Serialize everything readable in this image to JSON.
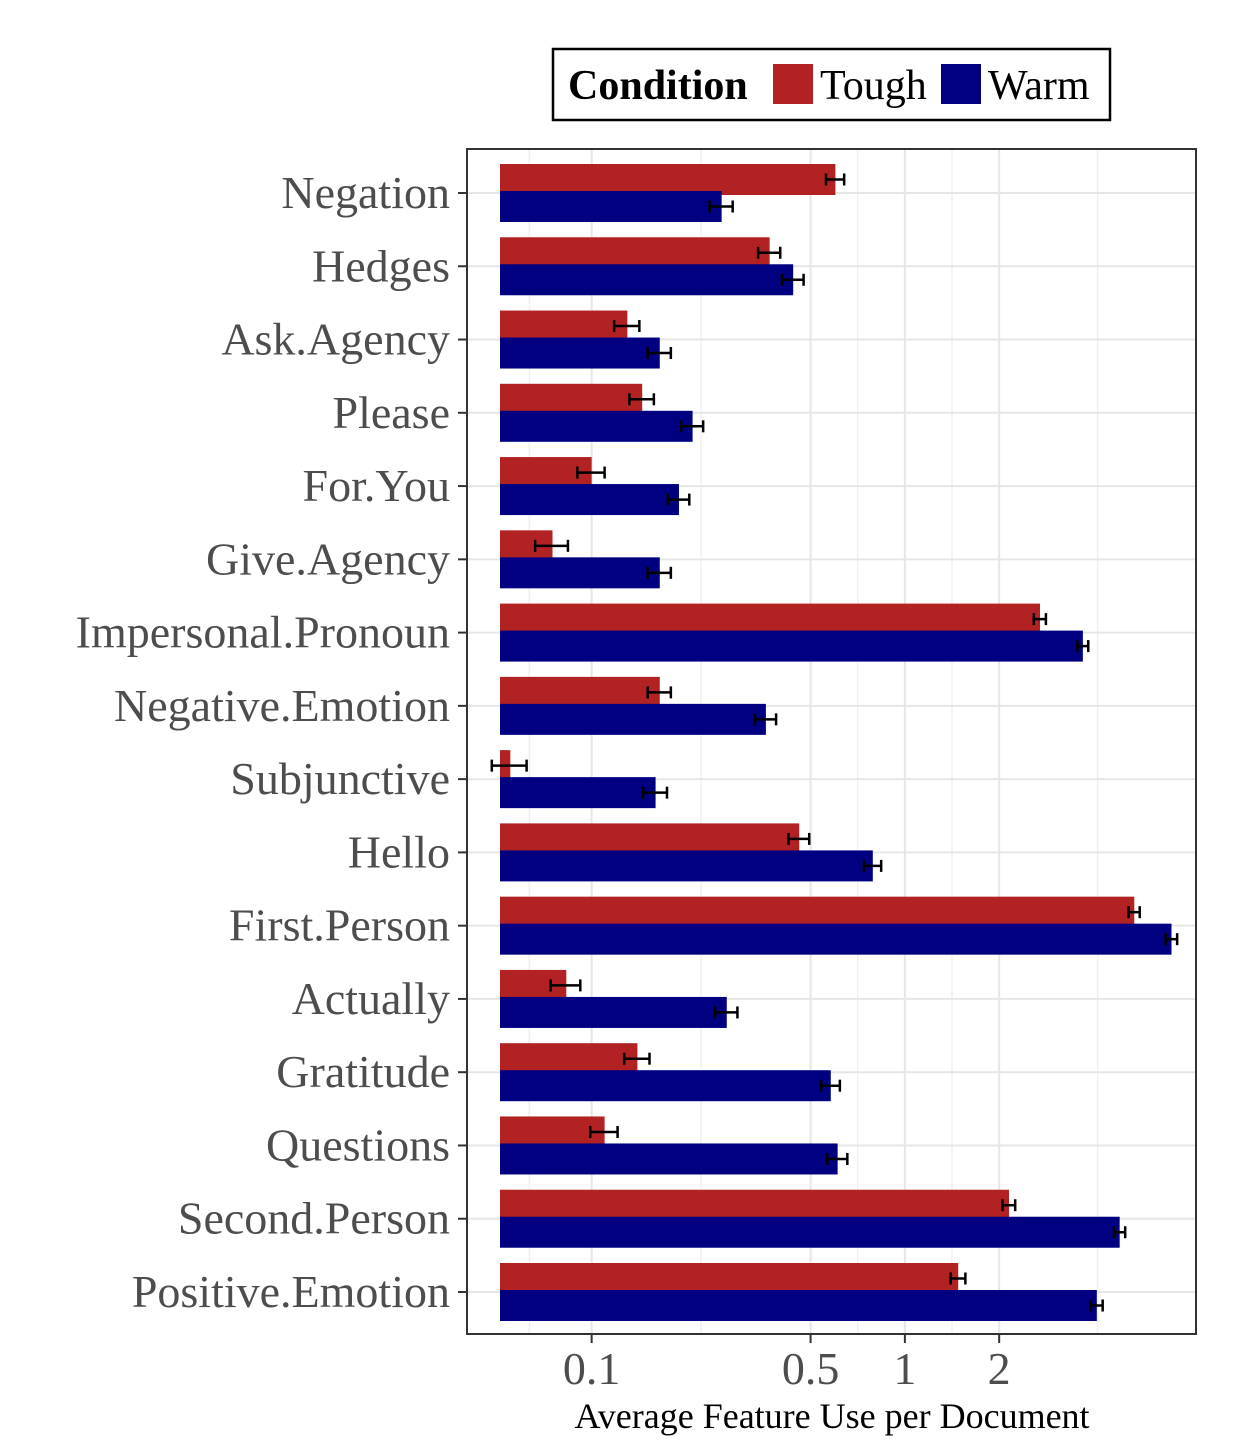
{
  "chart_data": {
    "type": "bar",
    "orientation": "horizontal",
    "xscale": "log",
    "xlabel": "Average Feature Use per Document",
    "ylabel": "",
    "xlim": [
      0.04,
      8.5
    ],
    "xticks": [
      {
        "value": 0.1,
        "label": "0.1"
      },
      {
        "value": 0.5,
        "label": "0.5"
      },
      {
        "value": 1,
        "label": "1"
      },
      {
        "value": 2,
        "label": "2"
      }
    ],
    "grid": true,
    "legend": {
      "title": "Condition",
      "position": "top"
    },
    "categories": [
      "Negation",
      "Hedges",
      "Ask.Agency",
      "Please",
      "For.You",
      "Give.Agency",
      "Impersonal.Pronoun",
      "Negative.Emotion",
      "Subjunctive",
      "Hello",
      "First.Person",
      "Actually",
      "Gratitude",
      "Questions",
      "Second.Person",
      "Positive.Emotion"
    ],
    "series": [
      {
        "name": "Tough",
        "color": "#b22222",
        "values": [
          0.6,
          0.37,
          0.13,
          0.145,
          0.1,
          0.075,
          2.7,
          0.165,
          0.055,
          0.46,
          5.4,
          0.083,
          0.14,
          0.11,
          2.15,
          1.48
        ],
        "errors": [
          0.04,
          0.03,
          0.012,
          0.013,
          0.01,
          0.009,
          0.12,
          0.014,
          0.007,
          0.035,
          0.22,
          0.009,
          0.013,
          0.011,
          0.1,
          0.08
        ]
      },
      {
        "name": "Warm",
        "color": "#000080",
        "values": [
          0.26,
          0.44,
          0.165,
          0.21,
          0.19,
          0.165,
          3.7,
          0.36,
          0.16,
          0.79,
          7.1,
          0.27,
          0.58,
          0.61,
          4.85,
          4.1
        ],
        "errors": [
          0.022,
          0.035,
          0.014,
          0.017,
          0.015,
          0.014,
          0.15,
          0.028,
          0.014,
          0.05,
          0.3,
          0.022,
          0.04,
          0.045,
          0.2,
          0.18
        ]
      }
    ]
  }
}
